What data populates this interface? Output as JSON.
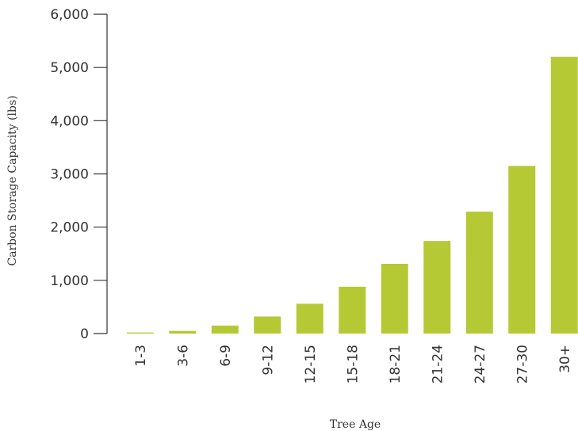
{
  "chart_data": {
    "type": "bar",
    "categories": [
      "1-3",
      "3-6",
      "6-9",
      "9-12",
      "12-15",
      "15-18",
      "18-21",
      "21-24",
      "24-27",
      "27-30",
      "30+"
    ],
    "values": [
      20,
      50,
      150,
      320,
      560,
      880,
      1310,
      1740,
      2290,
      3150,
      5200
    ],
    "xlabel": "Tree Age",
    "ylabel": "Carbon Storage Capacity (lbs)",
    "ylim": [
      0,
      6000
    ],
    "yticks": [
      "0",
      "1,000",
      "2,000",
      "3,000",
      "4,000",
      "5,000",
      "6,000"
    ],
    "ytick_values": [
      0,
      1000,
      2000,
      3000,
      4000,
      5000,
      6000
    ],
    "grid": false,
    "bar_color": "#b5c935",
    "axis_color": "#333333"
  }
}
